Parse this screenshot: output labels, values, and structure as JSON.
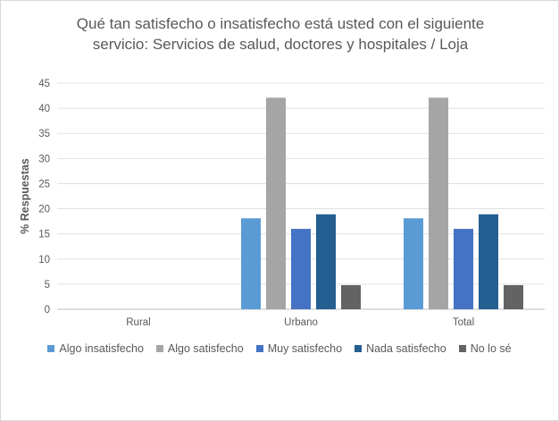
{
  "chart_data": {
    "type": "bar",
    "title_lines": [
      "Qué tan satisfecho o insatisfecho está usted con el siguiente",
      "servicio: Servicios de salud, doctores y hospitales / Loja"
    ],
    "ylabel": "% Respuestas",
    "xlabel": "",
    "ylim": [
      0,
      45
    ],
    "yticks": [
      0,
      5,
      10,
      15,
      20,
      25,
      30,
      35,
      40,
      45
    ],
    "grid": true,
    "legend_position": "bottom",
    "categories": [
      "Rural",
      "Urbano",
      "Total"
    ],
    "series": [
      {
        "name": "Algo insatisfecho",
        "color": "#5b9bd5",
        "values": [
          null,
          18.1,
          18.1
        ]
      },
      {
        "name": "Algo satisfecho",
        "color": "#a5a5a5",
        "values": [
          null,
          42.1,
          42.1
        ]
      },
      {
        "name": "Muy satisfecho",
        "color": "#4472c4",
        "values": [
          null,
          16.0,
          16.0
        ]
      },
      {
        "name": "Nada satisfecho",
        "color": "#255e91",
        "values": [
          null,
          18.9,
          18.9
        ]
      },
      {
        "name": "No lo sé",
        "color": "#636363",
        "values": [
          null,
          4.8,
          4.8
        ]
      }
    ]
  }
}
